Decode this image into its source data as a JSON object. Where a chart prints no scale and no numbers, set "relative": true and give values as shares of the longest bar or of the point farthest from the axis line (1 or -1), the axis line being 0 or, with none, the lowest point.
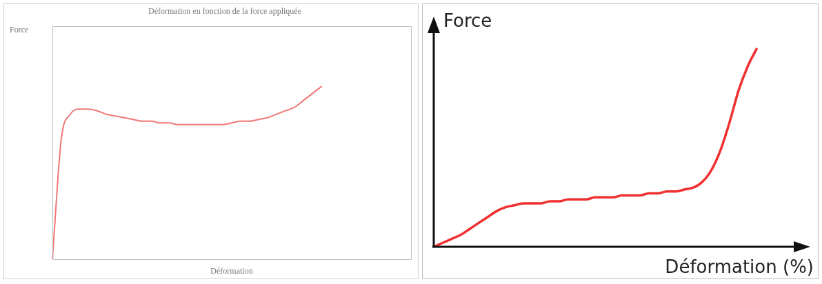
{
  "chart_data": [
    {
      "type": "line",
      "title": "Déformation en fonction de la force appliquée",
      "xlabel": "Déformation",
      "ylabel": "Force",
      "relative": true,
      "tick_labels": false,
      "grid": false,
      "legend": false,
      "marker": "none",
      "categories": [
        null,
        null,
        null,
        null,
        null,
        null,
        null,
        null,
        null,
        null,
        null,
        null,
        null,
        null,
        null,
        null,
        null,
        null,
        null,
        null,
        null,
        null,
        null,
        null,
        null,
        null,
        null,
        null,
        null,
        null,
        null,
        null,
        null,
        null,
        null,
        null,
        null,
        null,
        null,
        null,
        null
      ],
      "series": [
        {
          "color": "#f07878",
          "values": [
            0,
            0.7,
            0.84,
            0.87,
            0.87,
            0.86,
            0.84,
            0.83,
            0.82,
            0.81,
            0.8,
            0.8,
            0.79,
            0.79,
            0.78,
            0.78,
            0.78,
            0.78,
            0.78,
            0.78,
            0.79,
            0.8,
            0.8,
            0.81,
            0.82,
            0.84,
            0.86,
            0.88,
            0.92,
            0.96,
            1,
            null,
            null,
            null,
            null,
            null,
            null,
            null,
            null,
            null,
            null
          ]
        }
      ]
    },
    {
      "type": "line",
      "xlabel": "Déformation (%)",
      "ylabel": "Force",
      "relative": true,
      "tick_labels": false,
      "grid": false,
      "legend": false,
      "marker": "none",
      "categories": [
        null,
        null,
        null,
        null,
        null,
        null,
        null,
        null,
        null,
        null,
        null,
        null,
        null,
        null,
        null,
        null,
        null,
        null,
        null,
        null,
        null,
        null,
        null,
        null,
        null,
        null,
        null,
        null,
        null,
        null,
        null,
        null,
        null,
        null,
        null,
        null,
        null,
        null,
        null,
        null,
        null
      ],
      "series": [
        {
          "color": "#f03030",
          "values": [
            0,
            0.02,
            0.04,
            0.06,
            0.09,
            0.12,
            0.15,
            0.18,
            0.2,
            0.21,
            0.22,
            0.22,
            0.22,
            0.23,
            0.23,
            0.24,
            0.24,
            0.24,
            0.25,
            0.25,
            0.25,
            0.26,
            0.26,
            0.26,
            0.27,
            0.27,
            0.28,
            0.28,
            0.29,
            0.3,
            0.33,
            0.39,
            0.49,
            0.63,
            0.79,
            0.91,
            1,
            null,
            null,
            null,
            null
          ]
        }
      ]
    }
  ]
}
